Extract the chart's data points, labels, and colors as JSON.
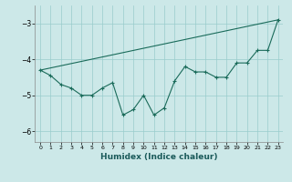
{
  "xlabel": "Humidex (Indice chaleur)",
  "background_color": "#cce8e8",
  "line_color": "#1a6b5a",
  "grid_color": "#99cccc",
  "x": [
    0,
    1,
    2,
    3,
    4,
    5,
    6,
    7,
    8,
    9,
    10,
    11,
    12,
    13,
    14,
    15,
    16,
    17,
    18,
    19,
    20,
    21,
    22,
    23
  ],
  "y": [
    -4.3,
    -4.45,
    -4.7,
    -4.8,
    -5.0,
    -5.0,
    -4.8,
    -4.65,
    -5.55,
    -5.4,
    -5.0,
    -5.55,
    -5.35,
    -4.6,
    -4.2,
    -4.35,
    -4.35,
    -4.5,
    -4.5,
    -4.1,
    -4.1,
    -3.75,
    -3.75,
    -2.9
  ],
  "trend_x": [
    0,
    23
  ],
  "trend_y": [
    -4.3,
    -2.9
  ],
  "extra_lines": [
    {
      "x": [
        2,
        3
      ],
      "y": [
        -4.7,
        -4.8
      ]
    },
    {
      "x": [
        3,
        4
      ],
      "y": [
        -4.8,
        -5.0
      ]
    },
    {
      "x": [
        3,
        6
      ],
      "y": [
        -4.8,
        -4.8
      ]
    },
    {
      "x": [
        6,
        7
      ],
      "y": [
        -4.8,
        -4.65
      ]
    }
  ],
  "ylim": [
    -6.3,
    -2.5
  ],
  "xlim": [
    -0.5,
    23.5
  ],
  "yticks": [
    -6,
    -5,
    -4,
    -3
  ],
  "xticks": [
    0,
    1,
    2,
    3,
    4,
    5,
    6,
    7,
    8,
    9,
    10,
    11,
    12,
    13,
    14,
    15,
    16,
    17,
    18,
    19,
    20,
    21,
    22,
    23
  ]
}
